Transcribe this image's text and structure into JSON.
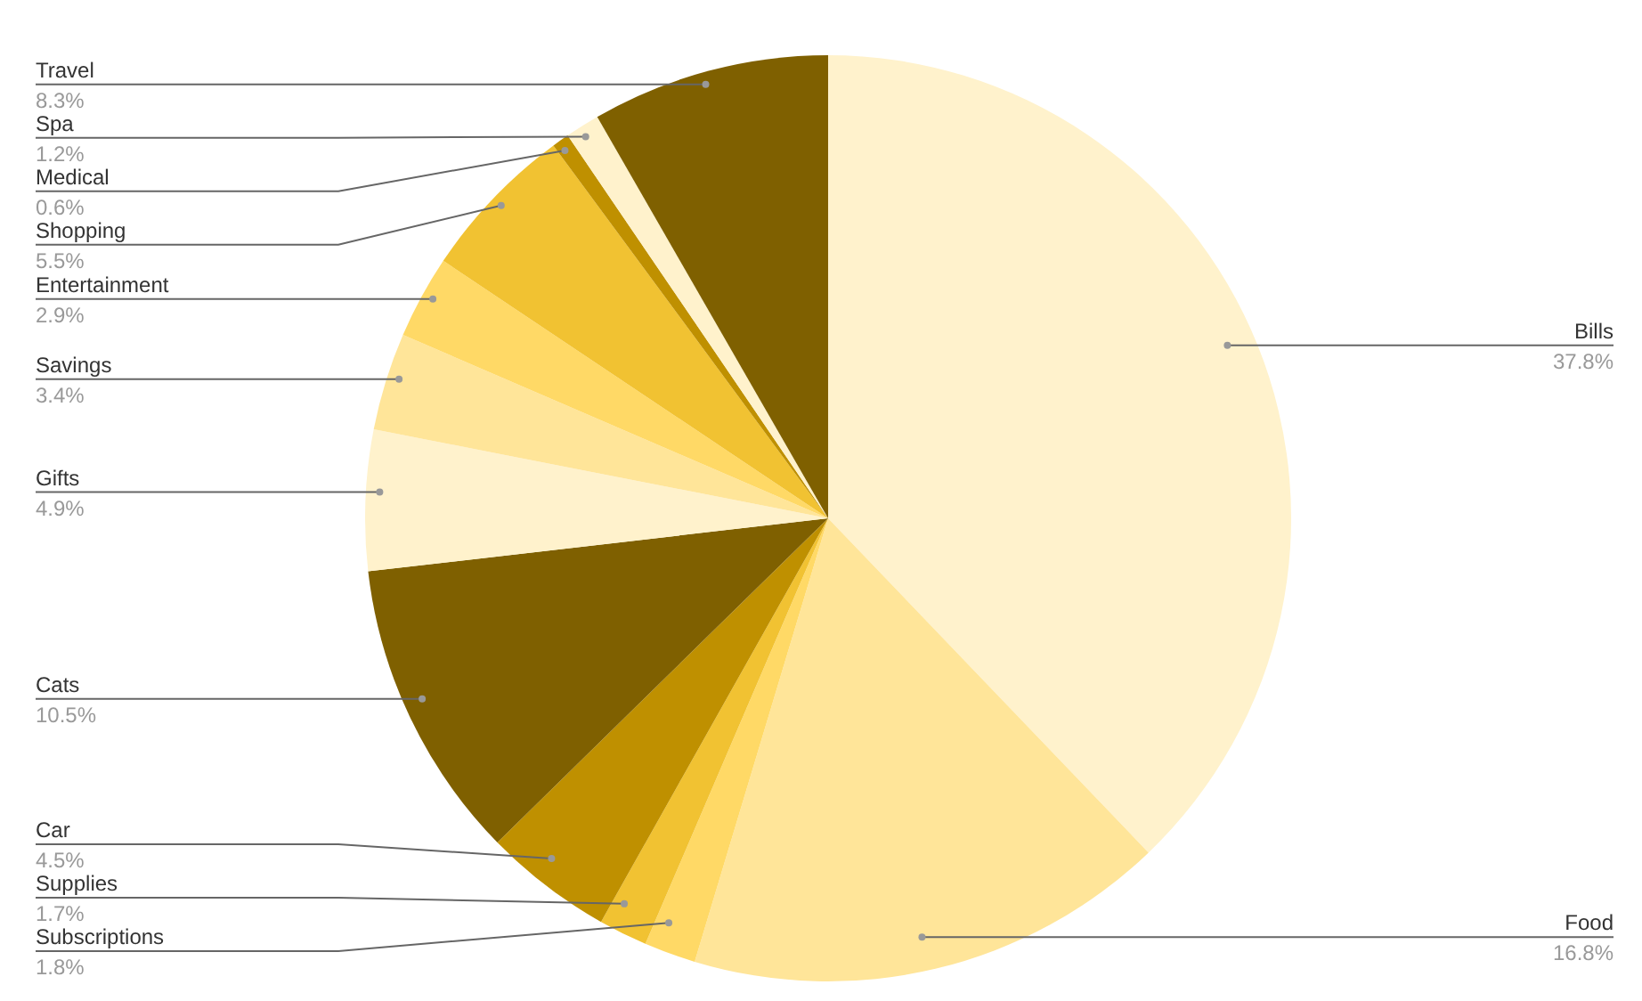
{
  "chart_data": {
    "type": "pie",
    "categories": [
      "Bills",
      "Food",
      "Subscriptions",
      "Supplies",
      "Car",
      "Cats",
      "Gifts",
      "Savings",
      "Entertainment",
      "Shopping",
      "Medical",
      "Spa",
      "Travel"
    ],
    "values": [
      37.8,
      16.8,
      1.8,
      1.7,
      4.5,
      10.5,
      4.9,
      3.4,
      2.9,
      5.5,
      0.6,
      1.2,
      8.3
    ],
    "colors": [
      "#fff2cc",
      "#ffe599",
      "#ffd966",
      "#f1c232",
      "#bf9000",
      "#7f6000",
      "#fff2cc",
      "#ffe599",
      "#ffd966",
      "#f1c232",
      "#bf9000",
      "#fff2cc",
      "#7f6000"
    ],
    "value_labels": [
      "37.8%",
      "16.8%",
      "1.8%",
      "1.7%",
      "4.5%",
      "10.5%",
      "4.9%",
      "3.4%",
      "2.9%",
      "5.5%",
      "0.6%",
      "1.2%",
      "8.3%"
    ],
    "legend": false
  }
}
